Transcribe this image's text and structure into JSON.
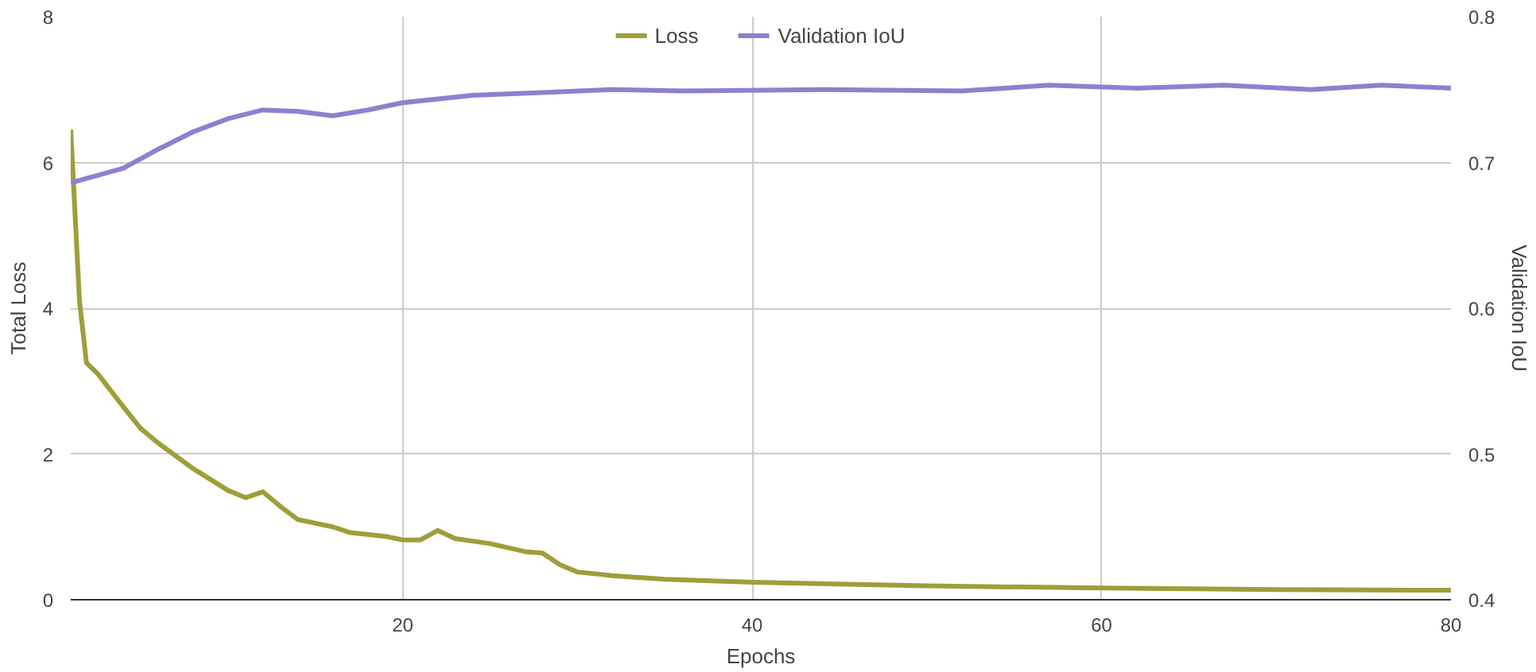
{
  "chart_data": {
    "type": "line",
    "xlabel": "Epochs",
    "ylabel": "Total Loss",
    "y2label": "Validation IoU",
    "xlim": [
      1,
      80
    ],
    "xticks": [
      20,
      40,
      60,
      80
    ],
    "ylim": [
      0,
      8
    ],
    "yticks": [
      0,
      2,
      4,
      6,
      8
    ],
    "y2lim": [
      0.4,
      0.8
    ],
    "y2ticks": [
      0.4,
      0.5,
      0.6,
      0.7,
      0.8
    ],
    "grid": true,
    "legend": "top",
    "marker": "none",
    "line_style": "solid",
    "series": [
      {
        "name": "Loss",
        "color": "#9e9e3a",
        "x": [
          1,
          1.5,
          1.9,
          2.55,
          4,
          5,
          6,
          8,
          10,
          11,
          12,
          13,
          14,
          16,
          17,
          19,
          20,
          21,
          22,
          23,
          25,
          27,
          28,
          29,
          30,
          32,
          35,
          40,
          50,
          60,
          70,
          80
        ],
        "values": [
          6.45,
          4.1,
          3.25,
          3.1,
          2.65,
          2.35,
          2.15,
          1.8,
          1.5,
          1.4,
          1.48,
          1.28,
          1.1,
          1.0,
          0.92,
          0.87,
          0.82,
          0.82,
          0.95,
          0.84,
          0.77,
          0.66,
          0.64,
          0.48,
          0.38,
          0.33,
          0.28,
          0.24,
          0.19,
          0.16,
          0.14,
          0.13
        ]
      },
      {
        "name": "Validation IoU",
        "color": "#8f7fcf",
        "axis": "y2",
        "x": [
          1,
          4,
          6,
          8,
          10,
          12,
          14,
          16,
          18,
          20,
          24,
          28,
          32,
          36,
          44,
          52,
          57,
          62,
          67,
          72,
          76,
          80
        ],
        "values": [
          0.686,
          0.696,
          0.709,
          0.721,
          0.73,
          0.736,
          0.735,
          0.732,
          0.736,
          0.741,
          0.746,
          0.748,
          0.75,
          0.749,
          0.75,
          0.749,
          0.753,
          0.751,
          0.753,
          0.75,
          0.753,
          0.751
        ]
      }
    ]
  }
}
